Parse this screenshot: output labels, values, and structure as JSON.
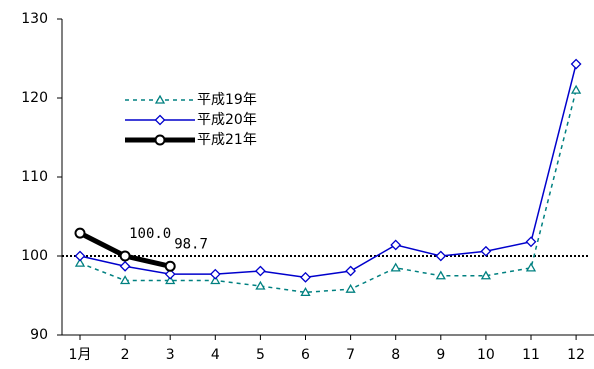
{
  "chart_data": {
    "type": "line",
    "categories": [
      "1月",
      "2",
      "3",
      "4",
      "5",
      "6",
      "7",
      "8",
      "9",
      "10",
      "11",
      "12"
    ],
    "series": [
      {
        "name": "平成19年",
        "color": "#008080",
        "values": [
          99.1,
          96.9,
          96.9,
          96.9,
          96.2,
          95.4,
          95.8,
          98.5,
          97.5,
          97.5,
          98.5,
          121.0
        ]
      },
      {
        "name": "平成20年",
        "color": "#0000cc",
        "values": [
          100.0,
          98.7,
          97.7,
          97.7,
          98.1,
          97.3,
          98.1,
          101.4,
          100.0,
          100.6,
          101.8,
          124.3
        ]
      },
      {
        "name": "平成21年",
        "color": "#000000",
        "values": [
          102.9,
          100.0,
          98.7,
          null,
          null,
          null,
          null,
          null,
          null,
          null,
          null,
          null
        ],
        "value_labels": [
          null,
          "100.0",
          "98.7",
          null,
          null,
          null,
          null,
          null,
          null,
          null,
          null,
          null
        ]
      }
    ],
    "ylim": [
      90,
      130
    ],
    "yticks": [
      90,
      100,
      110,
      120,
      130
    ],
    "reference_line": 100
  }
}
